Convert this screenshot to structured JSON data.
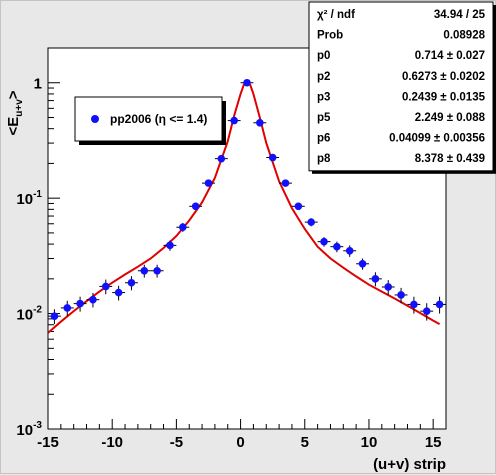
{
  "chart_data": {
    "type": "scatter",
    "xlabel": "(u+v) strip",
    "ylabel_main": "<E",
    "ylabel_sub": "u+v",
    "ylabel_close": ">",
    "xlim": [
      -15,
      16
    ],
    "ylim": [
      0.001,
      2
    ],
    "log_y": true,
    "x_ticks": [
      -15,
      -10,
      -5,
      0,
      5,
      10,
      15
    ],
    "y_ticks": [
      {
        "value": 0.001,
        "base": "10",
        "exp": "-3"
      },
      {
        "value": 0.01,
        "base": "10",
        "exp": "-2"
      },
      {
        "value": 0.1,
        "base": "10",
        "exp": "-1"
      },
      {
        "value": 1,
        "base": "1",
        "exp": ""
      }
    ],
    "grid": false,
    "legend": {
      "position": "top-left",
      "label": "pp2006 (η <= 1.4)"
    },
    "series": [
      {
        "name": "pp2006 (η <= 1.4)",
        "kind": "points",
        "color": "#1010ff",
        "x": [
          -14.5,
          -13.5,
          -12.5,
          -11.5,
          -10.5,
          -9.5,
          -8.5,
          -7.5,
          -6.5,
          -5.5,
          -4.5,
          -3.5,
          -2.5,
          -1.5,
          -0.5,
          0.5,
          1.5,
          2.5,
          3.5,
          4.5,
          5.5,
          6.5,
          7.5,
          8.5,
          9.5,
          10.5,
          11.5,
          12.5,
          13.5,
          14.5,
          15.5
        ],
        "y": [
          0.0095,
          0.0112,
          0.0122,
          0.0132,
          0.0172,
          0.0152,
          0.0185,
          0.0235,
          0.0235,
          0.039,
          0.056,
          0.085,
          0.135,
          0.22,
          0.47,
          1.0,
          0.45,
          0.225,
          0.135,
          0.085,
          0.062,
          0.042,
          0.038,
          0.035,
          0.027,
          0.02,
          0.017,
          0.0145,
          0.012,
          0.0105,
          0.012
        ],
        "yerr": [
          0.0014,
          0.0017,
          0.0018,
          0.0019,
          0.0025,
          0.0022,
          0.0026,
          0.003,
          0.003,
          0.004,
          0.005,
          0.006,
          0.008,
          0.01,
          0.015,
          0.02,
          0.015,
          0.01,
          0.008,
          0.006,
          0.005,
          0.004,
          0.004,
          0.004,
          0.003,
          0.0028,
          0.0025,
          0.0022,
          0.002,
          0.0018,
          0.002
        ]
      },
      {
        "name": "fit",
        "kind": "curve",
        "color": "#e00000",
        "x": [
          -15,
          -14,
          -13,
          -12,
          -11,
          -10,
          -9,
          -8,
          -7,
          -6,
          -5,
          -4,
          -3,
          -2,
          -1,
          -0.5,
          0,
          0.25,
          0.5,
          0.75,
          1,
          1.5,
          2,
          3,
          4,
          5,
          6,
          7,
          8,
          9,
          10,
          11,
          12,
          13,
          14,
          15,
          15.5
        ],
        "y": [
          0.0068,
          0.0085,
          0.0105,
          0.0128,
          0.0155,
          0.0185,
          0.0218,
          0.0255,
          0.03,
          0.037,
          0.047,
          0.064,
          0.092,
          0.15,
          0.31,
          0.52,
          0.8,
          0.96,
          1.02,
          0.96,
          0.8,
          0.5,
          0.3,
          0.14,
          0.082,
          0.054,
          0.038,
          0.03,
          0.025,
          0.021,
          0.0178,
          0.0155,
          0.0135,
          0.0117,
          0.0101,
          0.0087,
          0.0081
        ]
      }
    ],
    "stats_box": {
      "rows": [
        {
          "label": "χ² / ndf",
          "value": "34.94 / 25"
        },
        {
          "label": "Prob",
          "value": "0.08928"
        },
        {
          "label": "p0",
          "value": "0.714 ± 0.027"
        },
        {
          "label": "p2",
          "value": "0.6273 ± 0.0202"
        },
        {
          "label": "p3",
          "value": "0.2439 ± 0.0135"
        },
        {
          "label": "p5",
          "value": "2.249 ± 0.088"
        },
        {
          "label": "p6",
          "value": "0.04099 ± 0.00356"
        },
        {
          "label": "p8",
          "value": "8.378 ± 0.439"
        }
      ]
    }
  }
}
